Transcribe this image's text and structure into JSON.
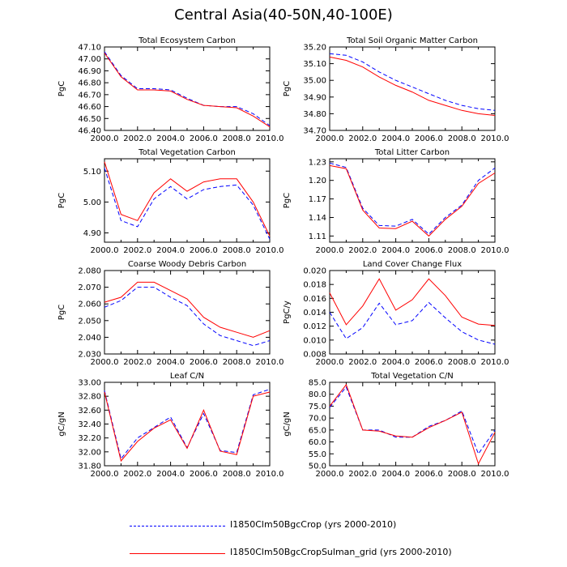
{
  "figure": {
    "title": "Central Asia(40-50N,40-100E)"
  },
  "legend": [
    {
      "label": "I1850Clm50BgcCrop (yrs 2000-2010)",
      "color": "#0000ff",
      "style": "dashed"
    },
    {
      "label": "I1850Clm50BgcCropSulman_grid (yrs 2000-2010)",
      "color": "#ff0000",
      "style": "solid"
    }
  ],
  "chart_data": [
    {
      "type": "line",
      "title": "Total Ecosystem Carbon",
      "ylabel": "PgC",
      "xlim": [
        2000,
        2010
      ],
      "ylim": [
        46.4,
        47.1
      ],
      "yticks": [
        "46.40",
        "46.50",
        "46.60",
        "46.70",
        "46.80",
        "46.90",
        "47.00",
        "47.10"
      ],
      "xticks": [
        "2000.0",
        "2002.0",
        "2004.0",
        "2006.0",
        "2008.0",
        "2010.0"
      ],
      "x": [
        2000,
        2001,
        2002,
        2003,
        2004,
        2005,
        2006,
        2007,
        2008,
        2009,
        2010
      ],
      "series": [
        {
          "name": "I1850Clm50BgcCrop (yrs 2000-2010)",
          "color": "#0000ff",
          "dash": true,
          "values": [
            47.06,
            46.86,
            46.75,
            46.75,
            46.74,
            46.67,
            46.61,
            46.6,
            46.6,
            46.54,
            46.44
          ]
        },
        {
          "name": "I1850Clm50BgcCropSulman_grid (yrs 2000-2010)",
          "color": "#ff0000",
          "dash": false,
          "values": [
            47.05,
            46.85,
            46.74,
            46.74,
            46.73,
            46.66,
            46.61,
            46.6,
            46.59,
            46.52,
            46.43
          ]
        }
      ]
    },
    {
      "type": "line",
      "title": "Total Soil Organic Matter Carbon",
      "ylabel": "PgC",
      "xlim": [
        2000,
        2010
      ],
      "ylim": [
        34.7,
        35.2
      ],
      "yticks": [
        "34.70",
        "34.80",
        "34.90",
        "35.00",
        "35.10",
        "35.20"
      ],
      "xticks": [
        "2000.0",
        "2002.0",
        "2004.0",
        "2006.0",
        "2008.0",
        "2010.0"
      ],
      "x": [
        2000,
        2001,
        2002,
        2003,
        2004,
        2005,
        2006,
        2007,
        2008,
        2009,
        2010
      ],
      "series": [
        {
          "name": "I1850Clm50BgcCrop (yrs 2000-2010)",
          "color": "#0000ff",
          "dash": true,
          "values": [
            35.16,
            35.15,
            35.11,
            35.05,
            35.0,
            34.96,
            34.92,
            34.88,
            34.85,
            34.83,
            34.82
          ]
        },
        {
          "name": "I1850Clm50BgcCropSulman_grid (yrs 2000-2010)",
          "color": "#ff0000",
          "dash": false,
          "values": [
            35.14,
            35.12,
            35.08,
            35.02,
            34.97,
            34.93,
            34.88,
            34.85,
            34.82,
            34.8,
            34.79
          ]
        }
      ]
    },
    {
      "type": "line",
      "title": "Total Vegetation Carbon",
      "ylabel": "PgC",
      "xlim": [
        2000,
        2010
      ],
      "ylim": [
        4.87,
        5.14
      ],
      "yticks": [
        "4.90",
        "5.00",
        "5.10"
      ],
      "ytick_values": [
        4.9,
        5.0,
        5.1
      ],
      "xticks": [
        "2000.0",
        "2002.0",
        "2004.0",
        "2006.0",
        "2008.0",
        "2010.0"
      ],
      "x": [
        2000,
        2001,
        2002,
        2003,
        2004,
        2005,
        2006,
        2007,
        2008,
        2009,
        2010
      ],
      "series": [
        {
          "name": "I1850Clm50BgcCrop (yrs 2000-2010)",
          "color": "#0000ff",
          "dash": true,
          "values": [
            5.11,
            4.94,
            4.92,
            5.01,
            5.05,
            5.01,
            5.04,
            5.05,
            5.055,
            4.99,
            4.88
          ]
        },
        {
          "name": "I1850Clm50BgcCropSulman_grid (yrs 2000-2010)",
          "color": "#ff0000",
          "dash": false,
          "values": [
            5.13,
            4.96,
            4.94,
            5.03,
            5.075,
            5.035,
            5.065,
            5.075,
            5.075,
            5.0,
            4.89
          ]
        }
      ]
    },
    {
      "type": "line",
      "title": "Total Litter Carbon",
      "ylabel": "PgC",
      "xlim": [
        2000,
        2010
      ],
      "ylim": [
        1.1,
        1.235
      ],
      "yticks": [
        "1.11",
        "1.14",
        "1.17",
        "1.20",
        "1.23"
      ],
      "ytick_values": [
        1.11,
        1.14,
        1.17,
        1.2,
        1.23
      ],
      "xticks": [
        "2000.0",
        "2002.0",
        "2004.0",
        "2006.0",
        "2008.0",
        "2010.0"
      ],
      "x": [
        2000,
        2001,
        2002,
        2003,
        2004,
        2005,
        2006,
        2007,
        2008,
        2009,
        2010
      ],
      "series": [
        {
          "name": "I1850Clm50BgcCrop (yrs 2000-2010)",
          "color": "#0000ff",
          "dash": true,
          "values": [
            1.228,
            1.221,
            1.155,
            1.127,
            1.126,
            1.137,
            1.113,
            1.14,
            1.16,
            1.2,
            1.22
          ]
        },
        {
          "name": "I1850Clm50BgcCropSulman_grid (yrs 2000-2010)",
          "color": "#ff0000",
          "dash": false,
          "values": [
            1.224,
            1.219,
            1.152,
            1.123,
            1.122,
            1.134,
            1.11,
            1.137,
            1.158,
            1.195,
            1.212
          ]
        }
      ]
    },
    {
      "type": "line",
      "title": "Coarse Woody Debris Carbon",
      "ylabel": "PgC",
      "xlim": [
        2000,
        2010
      ],
      "ylim": [
        2.03,
        2.08
      ],
      "yticks": [
        "2.030",
        "2.040",
        "2.050",
        "2.060",
        "2.070",
        "2.080"
      ],
      "xticks": [
        "2000.0",
        "2002.0",
        "2004.0",
        "2006.0",
        "2008.0",
        "2010.0"
      ],
      "x": [
        2000,
        2001,
        2002,
        2003,
        2004,
        2005,
        2006,
        2007,
        2008,
        2009,
        2010
      ],
      "series": [
        {
          "name": "I1850Clm50BgcCrop (yrs 2000-2010)",
          "color": "#0000ff",
          "dash": true,
          "values": [
            2.058,
            2.062,
            2.07,
            2.07,
            2.064,
            2.059,
            2.048,
            2.041,
            2.038,
            2.035,
            2.038
          ]
        },
        {
          "name": "I1850Clm50BgcCropSulman_grid (yrs 2000-2010)",
          "color": "#ff0000",
          "dash": false,
          "values": [
            2.061,
            2.064,
            2.073,
            2.073,
            2.068,
            2.063,
            2.052,
            2.046,
            2.043,
            2.04,
            2.044
          ]
        }
      ]
    },
    {
      "type": "line",
      "title": "Land Cover Change Flux",
      "ylabel": "PgC/y",
      "xlim": [
        2000,
        2010
      ],
      "ylim": [
        0.008,
        0.02
      ],
      "yticks": [
        "0.008",
        "0.010",
        "0.012",
        "0.014",
        "0.016",
        "0.018",
        "0.020"
      ],
      "xticks": [
        "2000.0",
        "2002.0",
        "2004.0",
        "2006.0",
        "2008.0",
        "2010.0"
      ],
      "x": [
        2000,
        2001,
        2002,
        2003,
        2004,
        2005,
        2006,
        2007,
        2008,
        2009,
        2010
      ],
      "series": [
        {
          "name": "I1850Clm50BgcCrop (yrs 2000-2010)",
          "color": "#0000ff",
          "dash": true,
          "values": [
            0.014,
            0.0102,
            0.0118,
            0.0153,
            0.0122,
            0.0128,
            0.0154,
            0.0132,
            0.0112,
            0.01,
            0.0094
          ]
        },
        {
          "name": "I1850Clm50BgcCropSulman_grid (yrs 2000-2010)",
          "color": "#ff0000",
          "dash": false,
          "values": [
            0.0168,
            0.0122,
            0.0149,
            0.0188,
            0.0143,
            0.0158,
            0.0188,
            0.0164,
            0.0133,
            0.0123,
            0.0121
          ]
        }
      ]
    },
    {
      "type": "line",
      "title": "Leaf C/N",
      "ylabel": "gC/gN",
      "xlim": [
        2000,
        2010
      ],
      "ylim": [
        31.8,
        33.0
      ],
      "yticks": [
        "31.80",
        "32.00",
        "32.20",
        "32.40",
        "32.60",
        "32.80",
        "33.00"
      ],
      "xticks": [
        "2000.0",
        "2002.0",
        "2004.0",
        "2006.0",
        "2008.0",
        "2010.0"
      ],
      "x": [
        2000,
        2001,
        2002,
        2003,
        2004,
        2005,
        2006,
        2007,
        2008,
        2009,
        2010
      ],
      "series": [
        {
          "name": "I1850Clm50BgcCrop (yrs 2000-2010)",
          "color": "#0000ff",
          "dash": true,
          "values": [
            32.88,
            31.9,
            32.2,
            32.35,
            32.5,
            32.06,
            32.55,
            32.02,
            31.99,
            32.82,
            32.9
          ]
        },
        {
          "name": "I1850Clm50BgcCropSulman_grid (yrs 2000-2010)",
          "color": "#ff0000",
          "dash": false,
          "values": [
            32.86,
            31.87,
            32.15,
            32.34,
            32.46,
            32.05,
            32.6,
            32.01,
            31.96,
            32.8,
            32.86
          ]
        }
      ]
    },
    {
      "type": "line",
      "title": "Total Vegetation C/N",
      "ylabel": "gC/gN",
      "xlim": [
        2000,
        2010
      ],
      "ylim": [
        50.0,
        85.0
      ],
      "yticks": [
        "50.0",
        "55.0",
        "60.0",
        "65.0",
        "70.0",
        "75.0",
        "80.0",
        "85.0"
      ],
      "xticks": [
        "2000.0",
        "2002.0",
        "2004.0",
        "2006.0",
        "2008.0",
        "2010.0"
      ],
      "x": [
        2000,
        2001,
        2002,
        2003,
        2004,
        2005,
        2006,
        2007,
        2008,
        2009,
        2010
      ],
      "series": [
        {
          "name": "I1850Clm50BgcCrop (yrs 2000-2010)",
          "color": "#0000ff",
          "dash": true,
          "values": [
            74.5,
            83.0,
            65.0,
            65.0,
            62.0,
            62.0,
            66.5,
            69.0,
            73.0,
            55.0,
            65.0
          ]
        },
        {
          "name": "I1850Clm50BgcCropSulman_grid (yrs 2000-2010)",
          "color": "#ff0000",
          "dash": false,
          "values": [
            75.0,
            84.0,
            65.0,
            64.5,
            62.5,
            62.0,
            66.0,
            69.0,
            72.5,
            50.8,
            64.0
          ]
        }
      ]
    }
  ]
}
